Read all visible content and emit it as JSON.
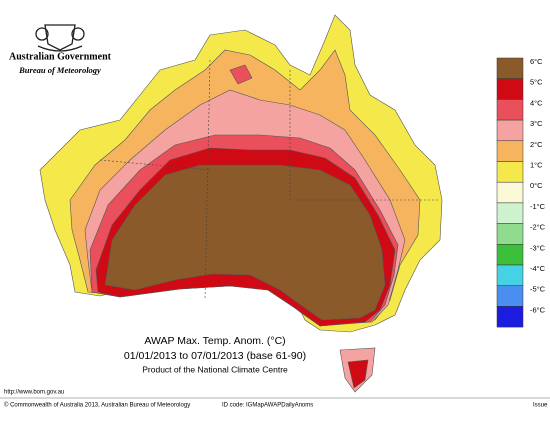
{
  "header": {
    "government": "Australian Government",
    "bureau": "Bureau of Meteorology"
  },
  "legend": {
    "items": [
      {
        "label": "6°C",
        "color": "#8b5a2b"
      },
      {
        "label": "5°C",
        "color": "#d00a14"
      },
      {
        "label": "4°C",
        "color": "#ea4f5c"
      },
      {
        "label": "3°C",
        "color": "#f5a3a0"
      },
      {
        "label": "2°C",
        "color": "#f6b45e"
      },
      {
        "label": "1°C",
        "color": "#f5e84a"
      },
      {
        "label": "0°C",
        "color": "#fbf8d6"
      },
      {
        "label": "-1°C",
        "color": "#cdf2cd"
      },
      {
        "label": "-2°C",
        "color": "#8fdc8f"
      },
      {
        "label": "-3°C",
        "color": "#3cc03c"
      },
      {
        "label": "-4°C",
        "color": "#44d2e4"
      },
      {
        "label": "-5°C",
        "color": "#4a8ff0"
      },
      {
        "label": "-6°C",
        "color": "#1c1ce0"
      }
    ]
  },
  "caption": {
    "title": "AWAP Max. Temp. Anom. (°C)",
    "period": "01/01/2013 to 07/01/2013 (base 61-90)",
    "product": "Product of the National Climate Centre"
  },
  "footer": {
    "url": "http://www.bom.gov.au",
    "copyright": "© Commonwealth of Australia 2013, Australian Bureau of Meteorology",
    "id_code": "ID code: IGMapAWAPDailyAnoms",
    "issue": "Issue"
  }
}
